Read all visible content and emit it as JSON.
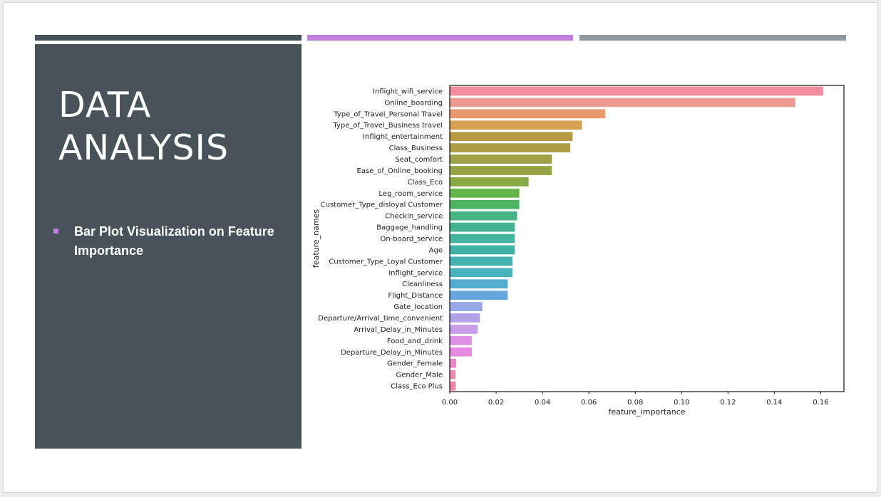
{
  "theme": {
    "panel": "#475359",
    "accent": "#c17ee0",
    "gray": "#8f989e"
  },
  "slide": {
    "title_line1": "DATA",
    "title_line2": "ANALYSIS",
    "bullet": "Bar Plot Visualization on Feature Importance"
  },
  "chart_data": {
    "type": "bar",
    "orientation": "horizontal",
    "title": "",
    "xlabel": "feature_importance",
    "ylabel": "feature_names",
    "xlim": [
      0,
      0.17
    ],
    "xticks": [
      0.0,
      0.02,
      0.04,
      0.06,
      0.08,
      0.1,
      0.12,
      0.14,
      0.16
    ],
    "xtick_labels": [
      "0.00",
      "0.02",
      "0.04",
      "0.06",
      "0.08",
      "0.10",
      "0.12",
      "0.14",
      "0.16"
    ],
    "grid": false,
    "categories": [
      "Inflight_wifi_service",
      "Online_boarding",
      "Type_of_Travel_Personal Travel",
      "Type_of_Travel_Business travel",
      "Inflight_entertainment",
      "Class_Business",
      "Seat_comfort",
      "Ease_of_Online_booking",
      "Class_Eco",
      "Leg_room_service",
      "Customer_Type_disloyal Customer",
      "Checkin_service",
      "Baggage_handling",
      "On-board_service",
      "Age",
      "Customer_Type_Loyal Customer",
      "Inflight_service",
      "Cleanliness",
      "Flight_Distance",
      "Gate_location",
      "Departure/Arrival_time_convenient",
      "Arrival_Delay_in_Minutes",
      "Food_and_drink",
      "Departure_Delay_in_Minutes",
      "Gender_Female",
      "Gender_Male",
      "Class_Eco Plus"
    ],
    "values": [
      0.161,
      0.149,
      0.067,
      0.057,
      0.053,
      0.052,
      0.044,
      0.044,
      0.034,
      0.03,
      0.03,
      0.029,
      0.028,
      0.028,
      0.028,
      0.027,
      0.027,
      0.025,
      0.025,
      0.014,
      0.013,
      0.012,
      0.0095,
      0.0095,
      0.0028,
      0.0025,
      0.0025
    ],
    "colors": [
      "#f08ba0",
      "#ec9a94",
      "#e8976a",
      "#d4a04f",
      "#b89a45",
      "#ad9d45",
      "#9fa146",
      "#97a446",
      "#89a946",
      "#66b74b",
      "#4fb564",
      "#47b382",
      "#44b391",
      "#43b39d",
      "#42b2a6",
      "#45b1af",
      "#48b3bc",
      "#53aed1",
      "#66a6de",
      "#97a6e4",
      "#b1a1e8",
      "#c79ce8",
      "#dd91e4",
      "#e68be0",
      "#ec86c4",
      "#ee8ab2",
      "#f087a2"
    ]
  }
}
